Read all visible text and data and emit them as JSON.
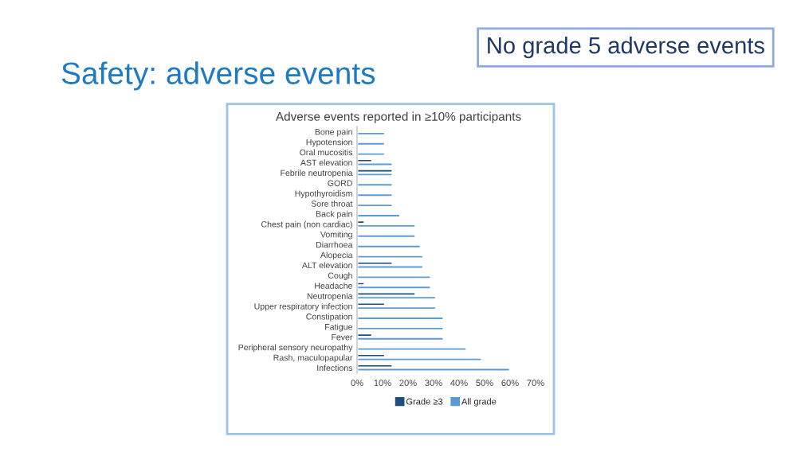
{
  "chart_data": {
    "type": "bar",
    "orientation": "horizontal",
    "title": "Safety: adverse events",
    "subtitle": "Adverse events reported in ≥10% participants",
    "annotations": [
      "No grade 5 adverse events"
    ],
    "categories": [
      "Bone pain",
      "Hypotension",
      "Oral mucositis",
      "AST elevation",
      "Febrile neutropenia",
      "GORD",
      "Hypothyroidism",
      "Sore throat",
      "Back pain",
      "Chest pain (non cardiac)",
      "Vomiting",
      "Diarrhoea",
      "Alopecia",
      "ALT elevation",
      "Cough",
      "Headache",
      "Neutropenia",
      "Upper respiratory infection",
      "Constipation",
      "Fatigue",
      "Fever",
      "Peripheral sensory neuropathy",
      "Rash, maculopapular",
      "Infections"
    ],
    "series": [
      {
        "name": "Grade ≥3",
        "color": "#1f4e79",
        "values": [
          null,
          null,
          null,
          6,
          14,
          null,
          null,
          null,
          null,
          3,
          null,
          null,
          null,
          14,
          null,
          3,
          23,
          11,
          null,
          null,
          6,
          null,
          11,
          14
        ]
      },
      {
        "name": "All grade",
        "color": "#5b9bd5",
        "values": [
          11,
          11,
          11,
          14,
          14,
          14,
          14,
          14,
          17,
          23,
          23,
          25,
          26,
          26,
          29,
          29,
          31,
          31,
          34,
          34,
          34,
          43,
          49,
          60
        ]
      }
    ],
    "xlim": [
      0,
      70
    ],
    "xticks": [
      {
        "value": 0,
        "label": "0%"
      },
      {
        "value": 10,
        "label": "10%"
      },
      {
        "value": 20,
        "label": "20%"
      },
      {
        "value": 30,
        "label": "30%"
      },
      {
        "value": 40,
        "label": "40%"
      },
      {
        "value": 50,
        "label": "50%"
      },
      {
        "value": 60,
        "label": "60%"
      },
      {
        "value": 70,
        "label": "70%"
      }
    ],
    "legend": "bottom"
  }
}
